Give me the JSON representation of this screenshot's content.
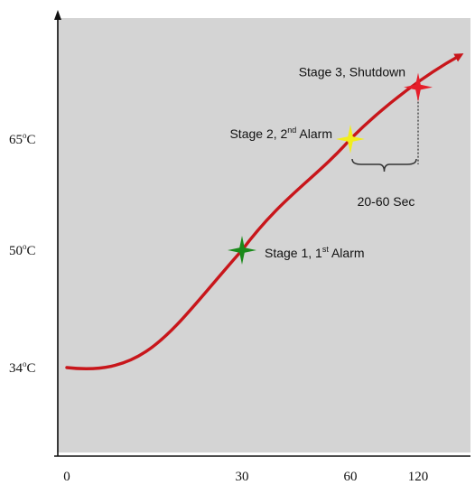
{
  "chart_data": {
    "type": "line",
    "title": "",
    "xlabel": "",
    "ylabel": "",
    "x_ticks": [
      "0",
      "30",
      "60",
      "120"
    ],
    "y_ticks": [
      {
        "value": 34,
        "label": "34",
        "unit": "oC"
      },
      {
        "value": 50,
        "label": "50",
        "unit": "oC"
      },
      {
        "value": 65,
        "label": "65",
        "unit": "oC"
      }
    ],
    "series": [
      {
        "color": "#c8161b",
        "points": [
          {
            "x": 0,
            "y": 34
          },
          {
            "x": 30,
            "y": 50
          },
          {
            "x": 60,
            "y": 65
          },
          {
            "x": 120,
            "y": 72
          }
        ]
      }
    ],
    "markers": [
      {
        "x": 30,
        "y": 50,
        "color": "#1a8a1a",
        "label": "Stage 1, 1",
        "sup": "st",
        "suffix": " Alarm"
      },
      {
        "x": 60,
        "y": 65,
        "color": "#f2ee1c",
        "label": "Stage 2, 2",
        "sup": "nd",
        "suffix": " Alarm"
      },
      {
        "x": 120,
        "y": 72,
        "color": "#e61e2a",
        "label": "Stage 3, Shutdown",
        "sup": "",
        "suffix": ""
      }
    ],
    "interval_annotation": {
      "from_x": 60,
      "to_x": 120,
      "label": "20-60 Sec"
    },
    "background": "#d4d4d4",
    "grid": false,
    "legend": "none"
  }
}
